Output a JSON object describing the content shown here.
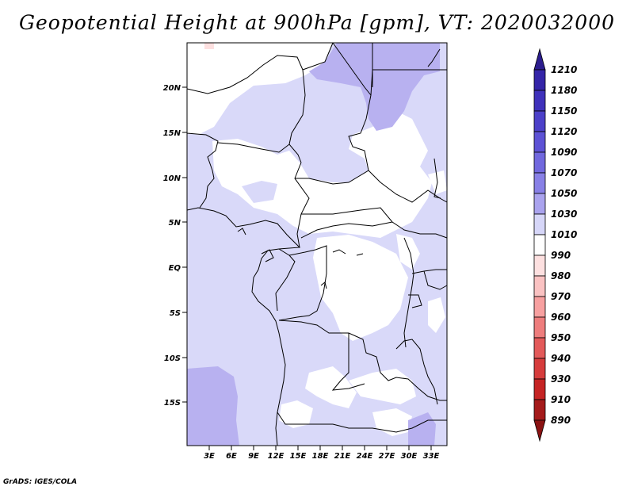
{
  "title": "Geopotential Height at 900hPa [gpm], VT: 2020032000",
  "credit": "GrADS: IGES/COLA",
  "map": {
    "lat_labels": [
      "20N",
      "15N",
      "10N",
      "5N",
      "EQ",
      "5S",
      "10S",
      "15S"
    ],
    "lon_labels": [
      "3E",
      "6E",
      "9E",
      "12E",
      "15E",
      "18E",
      "21E",
      "24E",
      "27E",
      "30E",
      "33E"
    ],
    "lat_range": [
      -20,
      24.5
    ],
    "lon_range": [
      0,
      35
    ]
  },
  "legend": {
    "levels": [
      "1210",
      "1180",
      "1150",
      "1120",
      "1090",
      "1070",
      "1050",
      "1030",
      "1010",
      "990",
      "980",
      "970",
      "960",
      "950",
      "940",
      "930",
      "910",
      "890"
    ],
    "colors": [
      "#2c1d8e",
      "#3425a8",
      "#3f31bb",
      "#4c40c9",
      "#5d52d5",
      "#7168de",
      "#8880e6",
      "#aaa3ee",
      "#d6d6f8",
      "#ffffff",
      "#fde0e0",
      "#fac2c2",
      "#f7a0a0",
      "#ee7d7d",
      "#e35a5a",
      "#d63c3c",
      "#c52424",
      "#a51b1b",
      "#8a1212"
    ]
  }
}
